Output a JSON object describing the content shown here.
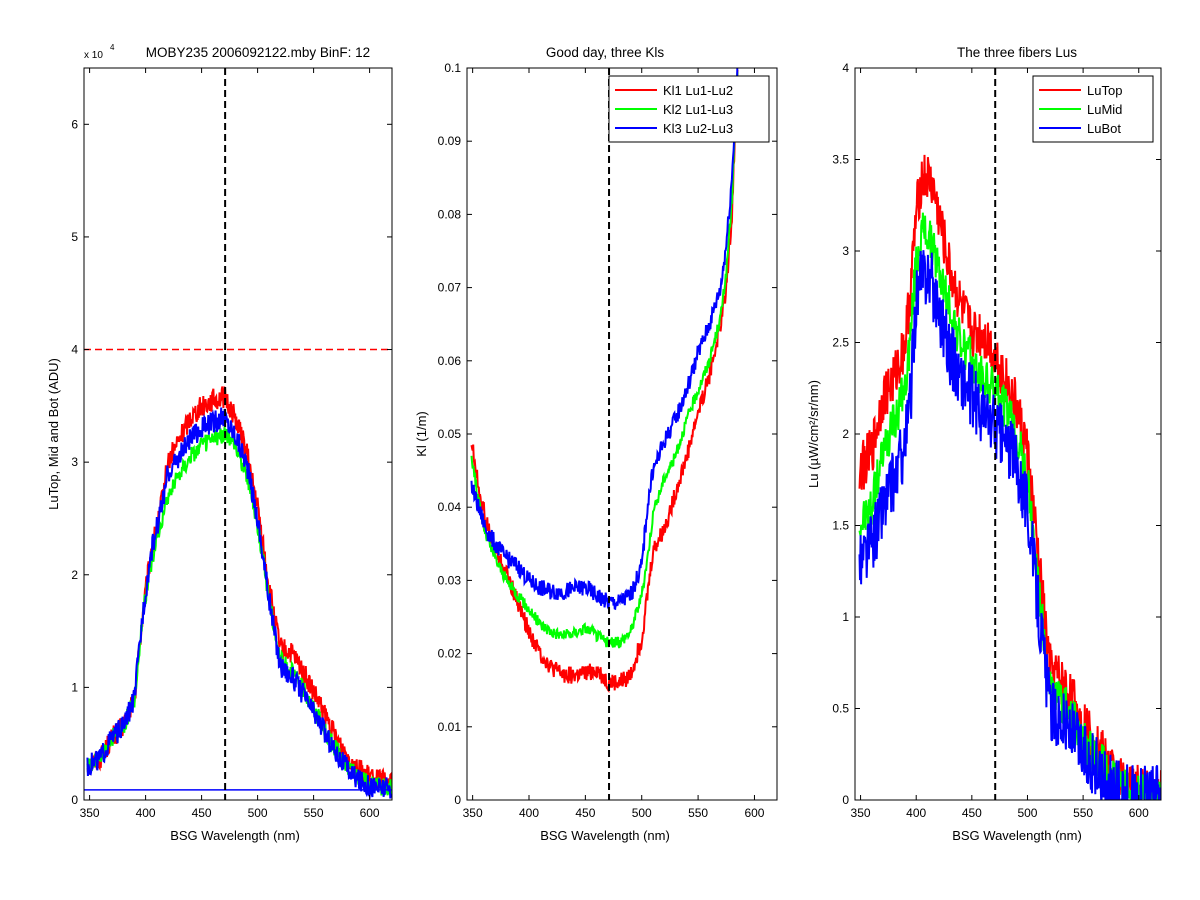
{
  "chart_data": [
    {
      "type": "line",
      "title": "MOBY235  2006092122.mby BinF: 12",
      "exponent_label": "x 10",
      "exponent_power": "4",
      "xlabel": "BSG Wavelength (nm)",
      "ylabel": "LuTop, Mid and Bot (ADU)",
      "xlim": [
        345,
        620
      ],
      "ylim": [
        0,
        6.5
      ],
      "y_scale_note": "values in units of 10^4 ADU",
      "xticks": [
        350,
        400,
        450,
        500,
        550,
        600
      ],
      "xtick_labels": [
        "350",
        "400",
        "450",
        "500",
        "550",
        "600"
      ],
      "yticks": [
        0,
        1,
        2,
        3,
        4,
        5,
        6
      ],
      "ytick_labels": [
        "0",
        "1",
        "2",
        "3",
        "4",
        "5",
        "6"
      ],
      "grid": false,
      "legend": null,
      "vline": {
        "x": 471,
        "color": "#000000",
        "style": "dashed"
      },
      "hlines": [
        {
          "y": 4.0,
          "color": "#ff0000",
          "style": "dashed"
        },
        {
          "y": 0.09,
          "color": "#0000ff",
          "style": "solid"
        }
      ],
      "series": [
        {
          "color": "#ff0000",
          "noise": 0.1,
          "x": [
            348,
            360,
            370,
            380,
            390,
            398,
            405,
            412,
            420,
            430,
            440,
            450,
            460,
            470,
            480,
            490,
            500,
            510,
            520,
            530,
            540,
            550,
            560,
            570,
            580,
            590,
            600,
            610,
            620
          ],
          "y": [
            0.3,
            0.38,
            0.55,
            0.65,
            0.9,
            1.7,
            2.2,
            2.5,
            3.0,
            3.2,
            3.4,
            3.5,
            3.55,
            3.58,
            3.4,
            3.1,
            2.6,
            1.9,
            1.35,
            1.3,
            1.15,
            0.95,
            0.75,
            0.55,
            0.4,
            0.28,
            0.2,
            0.17,
            0.15
          ]
        },
        {
          "color": "#00ff00",
          "noise": 0.08,
          "x": [
            348,
            360,
            370,
            380,
            390,
            398,
            405,
            412,
            420,
            430,
            440,
            450,
            460,
            470,
            480,
            490,
            500,
            510,
            520,
            530,
            540,
            550,
            560,
            570,
            580,
            590,
            600,
            610,
            620
          ],
          "y": [
            0.3,
            0.38,
            0.55,
            0.65,
            0.9,
            1.7,
            2.1,
            2.4,
            2.7,
            2.9,
            3.05,
            3.15,
            3.2,
            3.25,
            3.15,
            2.9,
            2.45,
            1.8,
            1.25,
            1.15,
            1.0,
            0.82,
            0.62,
            0.45,
            0.3,
            0.2,
            0.14,
            0.12,
            0.11
          ]
        },
        {
          "color": "#0000ff",
          "noise": 0.1,
          "x": [
            348,
            360,
            370,
            380,
            390,
            398,
            405,
            412,
            420,
            430,
            440,
            450,
            460,
            470,
            480,
            490,
            500,
            510,
            520,
            530,
            540,
            550,
            560,
            570,
            580,
            590,
            600,
            610,
            620
          ],
          "y": [
            0.3,
            0.38,
            0.55,
            0.65,
            0.9,
            1.7,
            2.2,
            2.5,
            2.9,
            3.05,
            3.2,
            3.3,
            3.35,
            3.4,
            3.25,
            3.0,
            2.5,
            1.8,
            1.2,
            1.1,
            0.95,
            0.78,
            0.6,
            0.42,
            0.28,
            0.18,
            0.13,
            0.11,
            0.1
          ]
        }
      ]
    },
    {
      "type": "line",
      "title": "Good day, three Kls",
      "xlabel": "BSG Wavelength (nm)",
      "ylabel": "Kl (1/m)",
      "xlim": [
        345,
        620
      ],
      "ylim": [
        0,
        0.1
      ],
      "xticks": [
        350,
        400,
        450,
        500,
        550,
        600
      ],
      "xtick_labels": [
        "350",
        "400",
        "450",
        "500",
        "550",
        "600"
      ],
      "yticks": [
        0,
        0.01,
        0.02,
        0.03,
        0.04,
        0.05,
        0.06,
        0.07,
        0.08,
        0.09,
        0.1
      ],
      "ytick_labels": [
        "0",
        "0.01",
        "0.02",
        "0.03",
        "0.04",
        "0.05",
        "0.06",
        "0.07",
        "0.08",
        "0.09",
        "0.1"
      ],
      "grid": false,
      "legend": "top-right",
      "vline": {
        "x": 471,
        "color": "#000000",
        "style": "dashed"
      },
      "hlines": [],
      "series": [
        {
          "name": "Kl1 Lu1-Lu2",
          "color": "#ff0000",
          "noise": 0.0012,
          "x": [
            349,
            355,
            362,
            370,
            380,
            390,
            400,
            410,
            420,
            430,
            440,
            450,
            460,
            470,
            480,
            490,
            500,
            505,
            510,
            520,
            530,
            540,
            550,
            560,
            570,
            575,
            580,
            585
          ],
          "y": [
            0.049,
            0.043,
            0.038,
            0.034,
            0.031,
            0.027,
            0.023,
            0.02,
            0.018,
            0.0172,
            0.017,
            0.0172,
            0.0178,
            0.016,
            0.016,
            0.017,
            0.022,
            0.028,
            0.034,
            0.037,
            0.042,
            0.047,
            0.053,
            0.058,
            0.065,
            0.07,
            0.08,
            0.1
          ]
        },
        {
          "name": "Kl2 Lu1-Lu3",
          "color": "#00ff00",
          "noise": 0.0008,
          "x": [
            349,
            355,
            362,
            370,
            380,
            390,
            400,
            410,
            420,
            430,
            440,
            450,
            460,
            470,
            480,
            490,
            500,
            505,
            510,
            520,
            530,
            540,
            550,
            560,
            570,
            575,
            580,
            585
          ],
          "y": [
            0.047,
            0.041,
            0.036,
            0.033,
            0.03,
            0.028,
            0.026,
            0.024,
            0.023,
            0.0225,
            0.0228,
            0.0235,
            0.0225,
            0.0215,
            0.0215,
            0.023,
            0.028,
            0.033,
            0.039,
            0.044,
            0.047,
            0.052,
            0.056,
            0.06,
            0.066,
            0.072,
            0.082,
            0.1
          ]
        },
        {
          "name": "Kl3 Lu2-Lu3",
          "color": "#0000ff",
          "noise": 0.0012,
          "x": [
            349,
            355,
            362,
            370,
            380,
            390,
            400,
            410,
            420,
            430,
            440,
            450,
            460,
            470,
            480,
            490,
            500,
            505,
            510,
            520,
            530,
            540,
            550,
            560,
            570,
            575,
            580,
            585
          ],
          "y": [
            0.043,
            0.04,
            0.037,
            0.035,
            0.033,
            0.032,
            0.03,
            0.029,
            0.0285,
            0.0285,
            0.0288,
            0.029,
            0.028,
            0.027,
            0.027,
            0.028,
            0.032,
            0.04,
            0.045,
            0.049,
            0.052,
            0.056,
            0.061,
            0.065,
            0.07,
            0.076,
            0.085,
            0.1
          ]
        }
      ]
    },
    {
      "type": "line",
      "title": "The three fibers Lus",
      "xlabel": "BSG Wavelength (nm)",
      "ylabel": "Lu (µW/cm²/sr/nm)",
      "xlim": [
        345,
        620
      ],
      "ylim": [
        0,
        4
      ],
      "xticks": [
        350,
        400,
        450,
        500,
        550,
        600
      ],
      "xtick_labels": [
        "350",
        "400",
        "450",
        "500",
        "550",
        "600"
      ],
      "yticks": [
        0,
        0.5,
        1,
        1.5,
        2,
        2.5,
        3,
        3.5,
        4
      ],
      "ytick_labels": [
        "0",
        "0.5",
        "1",
        "1.5",
        "2",
        "2.5",
        "3",
        "3.5",
        "4"
      ],
      "grid": false,
      "legend": "top-right",
      "vline": {
        "x": 471,
        "color": "#000000",
        "style": "dashed"
      },
      "hlines": [],
      "series": [
        {
          "name": "LuTop",
          "color": "#ff0000",
          "noise": 0.14,
          "x": [
            349,
            360,
            370,
            380,
            390,
            395,
            400,
            405,
            410,
            415,
            420,
            430,
            440,
            450,
            460,
            470,
            480,
            490,
            500,
            510,
            520,
            530,
            540,
            550,
            560,
            570,
            580,
            590,
            600,
            610,
            620
          ],
          "y": [
            1.8,
            1.9,
            2.2,
            2.3,
            2.5,
            2.8,
            3.2,
            3.4,
            3.4,
            3.35,
            3.2,
            2.9,
            2.7,
            2.55,
            2.55,
            2.45,
            2.3,
            2.15,
            1.9,
            1.3,
            0.72,
            0.65,
            0.55,
            0.42,
            0.32,
            0.22,
            0.12,
            0.07,
            0.05,
            0.04,
            0.04
          ]
        },
        {
          "name": "LuMid",
          "color": "#00ff00",
          "noise": 0.12,
          "x": [
            349,
            360,
            370,
            380,
            390,
            395,
            400,
            405,
            410,
            415,
            420,
            430,
            440,
            450,
            460,
            470,
            480,
            490,
            500,
            510,
            520,
            530,
            540,
            550,
            560,
            570,
            580,
            590,
            600,
            610,
            620
          ],
          "y": [
            1.5,
            1.6,
            1.9,
            2.05,
            2.25,
            2.55,
            2.95,
            3.1,
            3.1,
            3.0,
            2.9,
            2.7,
            2.5,
            2.4,
            2.3,
            2.25,
            2.15,
            2.0,
            1.75,
            1.15,
            0.6,
            0.55,
            0.45,
            0.33,
            0.25,
            0.17,
            0.08,
            0.04,
            0.03,
            0.02,
            0.02
          ]
        },
        {
          "name": "LuBot",
          "color": "#0000ff",
          "noise": 0.18,
          "x": [
            349,
            360,
            370,
            380,
            390,
            395,
            400,
            405,
            410,
            415,
            420,
            430,
            440,
            450,
            460,
            470,
            480,
            490,
            500,
            510,
            520,
            530,
            540,
            550,
            560,
            570,
            580,
            590,
            600,
            610,
            620
          ],
          "y": [
            1.3,
            1.4,
            1.6,
            1.75,
            1.95,
            2.2,
            2.75,
            2.85,
            2.9,
            2.8,
            2.7,
            2.45,
            2.3,
            2.2,
            2.1,
            2.05,
            1.95,
            1.85,
            1.6,
            1.05,
            0.5,
            0.45,
            0.36,
            0.26,
            0.18,
            0.1,
            0.04,
            0.02,
            0.01,
            0.01,
            0.01
          ]
        }
      ]
    }
  ]
}
